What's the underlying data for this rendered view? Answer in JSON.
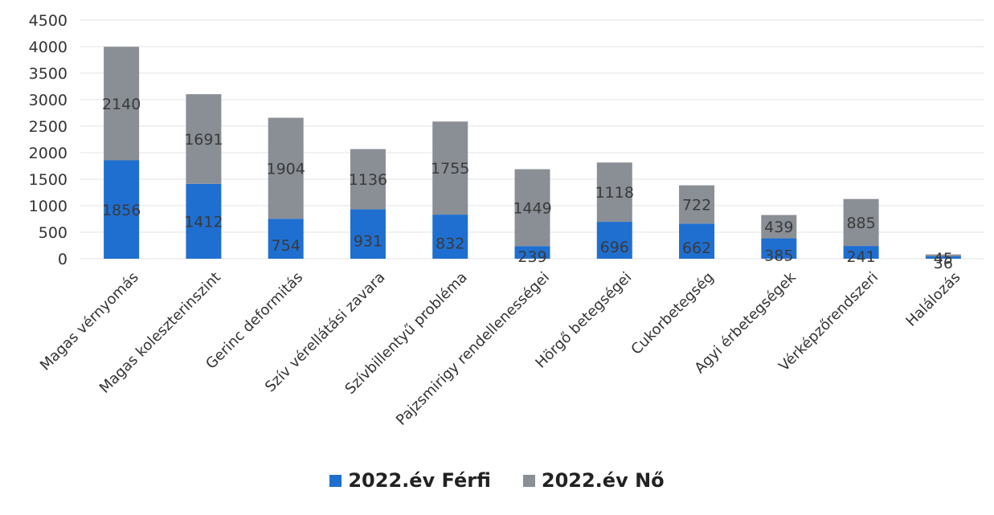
{
  "chart_data": {
    "type": "bar",
    "stacked": true,
    "categories": [
      "Magas vérnyomás",
      "Magas koleszterinszint",
      "Gerinc deformitás",
      "Szív vérellátási zavara",
      "Szívbillentyű probléma",
      "Pajzsmirigy rendellenességei",
      "Hörgő betegségei",
      "Cukorbetegség",
      "Agyi érbetegségek",
      "Vérképzőrendszeri",
      "Halálozás"
    ],
    "series": [
      {
        "name": "2022.év Férfi",
        "color": "#1f6fd0",
        "values": [
          1856,
          1412,
          754,
          931,
          832,
          239,
          696,
          662,
          385,
          241,
          45
        ]
      },
      {
        "name": "2022.év Nő",
        "color": "#8a8f96",
        "values": [
          2140,
          1691,
          1904,
          1136,
          1755,
          1449,
          1118,
          722,
          439,
          885,
          36
        ]
      }
    ],
    "yticks": [
      0,
      500,
      1000,
      1500,
      2000,
      2500,
      3000,
      3500,
      4000,
      4500
    ],
    "ylim": [
      0,
      4500
    ],
    "grid": true,
    "legend_position": "bottom"
  }
}
